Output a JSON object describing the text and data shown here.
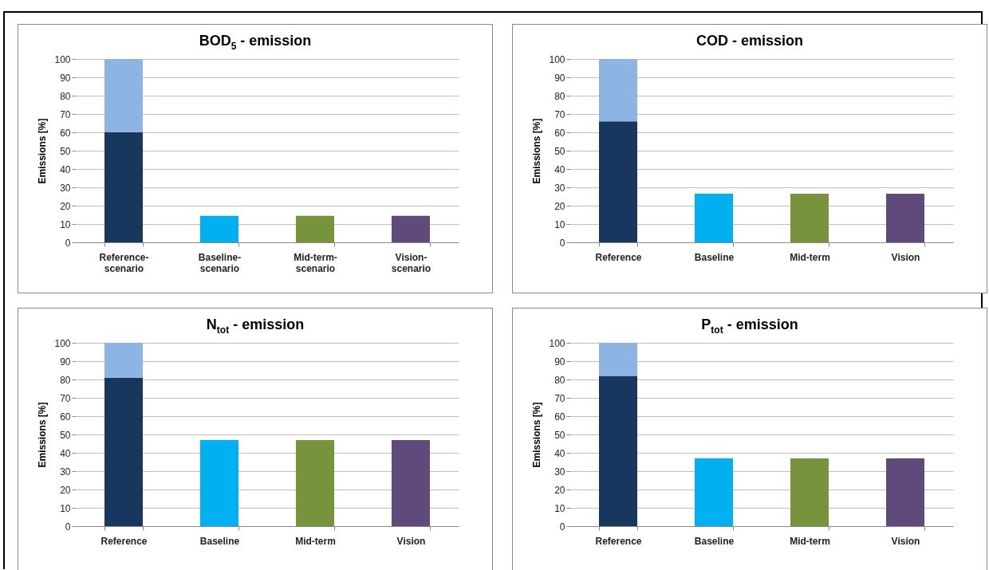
{
  "chart_data": [
    {
      "type": "bar",
      "title": "BOD$_{5}$ - emission",
      "ylabel": "Emissions [%]",
      "categories": [
        "Reference-\nscenario",
        "Baseline-\nscenario",
        "Mid-term-\nscenario",
        "Vision-\nscenario"
      ],
      "stacked": true,
      "ylim": [
        0,
        100
      ],
      "yticks": [
        0,
        10,
        20,
        30,
        40,
        50,
        60,
        70,
        80,
        90,
        100
      ],
      "grid": "y",
      "series": [
        {
          "colors": [
            "#17375e",
            "#00b0f0",
            "#77933c",
            "#604a7b"
          ],
          "values": [
            60,
            14.5,
            14.5,
            14.5
          ]
        },
        {
          "color": "#8eb4e3",
          "values": [
            40,
            null,
            null,
            null
          ]
        }
      ]
    },
    {
      "type": "bar",
      "title": "COD - emission",
      "ylabel": "Emissions [%]",
      "categories": [
        "Reference",
        "Baseline",
        "Mid-term",
        "Vision"
      ],
      "stacked": true,
      "ylim": [
        0,
        100
      ],
      "yticks": [
        0,
        10,
        20,
        30,
        40,
        50,
        60,
        70,
        80,
        90,
        100
      ],
      "grid": "y",
      "series": [
        {
          "colors": [
            "#17375e",
            "#00b0f0",
            "#77933c",
            "#604a7b"
          ],
          "values": [
            66,
            26.5,
            26.5,
            26.5
          ]
        },
        {
          "color": "#8eb4e3",
          "values": [
            34,
            null,
            null,
            null
          ]
        }
      ]
    },
    {
      "type": "bar",
      "title": "N$_{tot}$ - emission",
      "ylabel": "Emissions [%]",
      "categories": [
        "Reference",
        "Baseline",
        "Mid-term",
        "Vision"
      ],
      "stacked": true,
      "ylim": [
        0,
        100
      ],
      "yticks": [
        0,
        10,
        20,
        30,
        40,
        50,
        60,
        70,
        80,
        90,
        100
      ],
      "grid": "y",
      "series": [
        {
          "colors": [
            "#17375e",
            "#00b0f0",
            "#77933c",
            "#604a7b"
          ],
          "values": [
            81,
            47,
            47,
            47
          ]
        },
        {
          "color": "#8eb4e3",
          "values": [
            19,
            null,
            null,
            null
          ]
        }
      ]
    },
    {
      "type": "bar",
      "title": "P$_{tot}$ - emission",
      "ylabel": "Emissions [%]",
      "categories": [
        "Reference",
        "Baseline",
        "Mid-term",
        "Vision"
      ],
      "stacked": true,
      "ylim": [
        0,
        100
      ],
      "yticks": [
        0,
        10,
        20,
        30,
        40,
        50,
        60,
        70,
        80,
        90,
        100
      ],
      "grid": "y",
      "series": [
        {
          "colors": [
            "#17375e",
            "#00b0f0",
            "#77933c",
            "#604a7b"
          ],
          "values": [
            82,
            37,
            37,
            37
          ]
        },
        {
          "color": "#8eb4e3",
          "values": [
            18,
            null,
            null,
            null
          ]
        }
      ]
    }
  ]
}
